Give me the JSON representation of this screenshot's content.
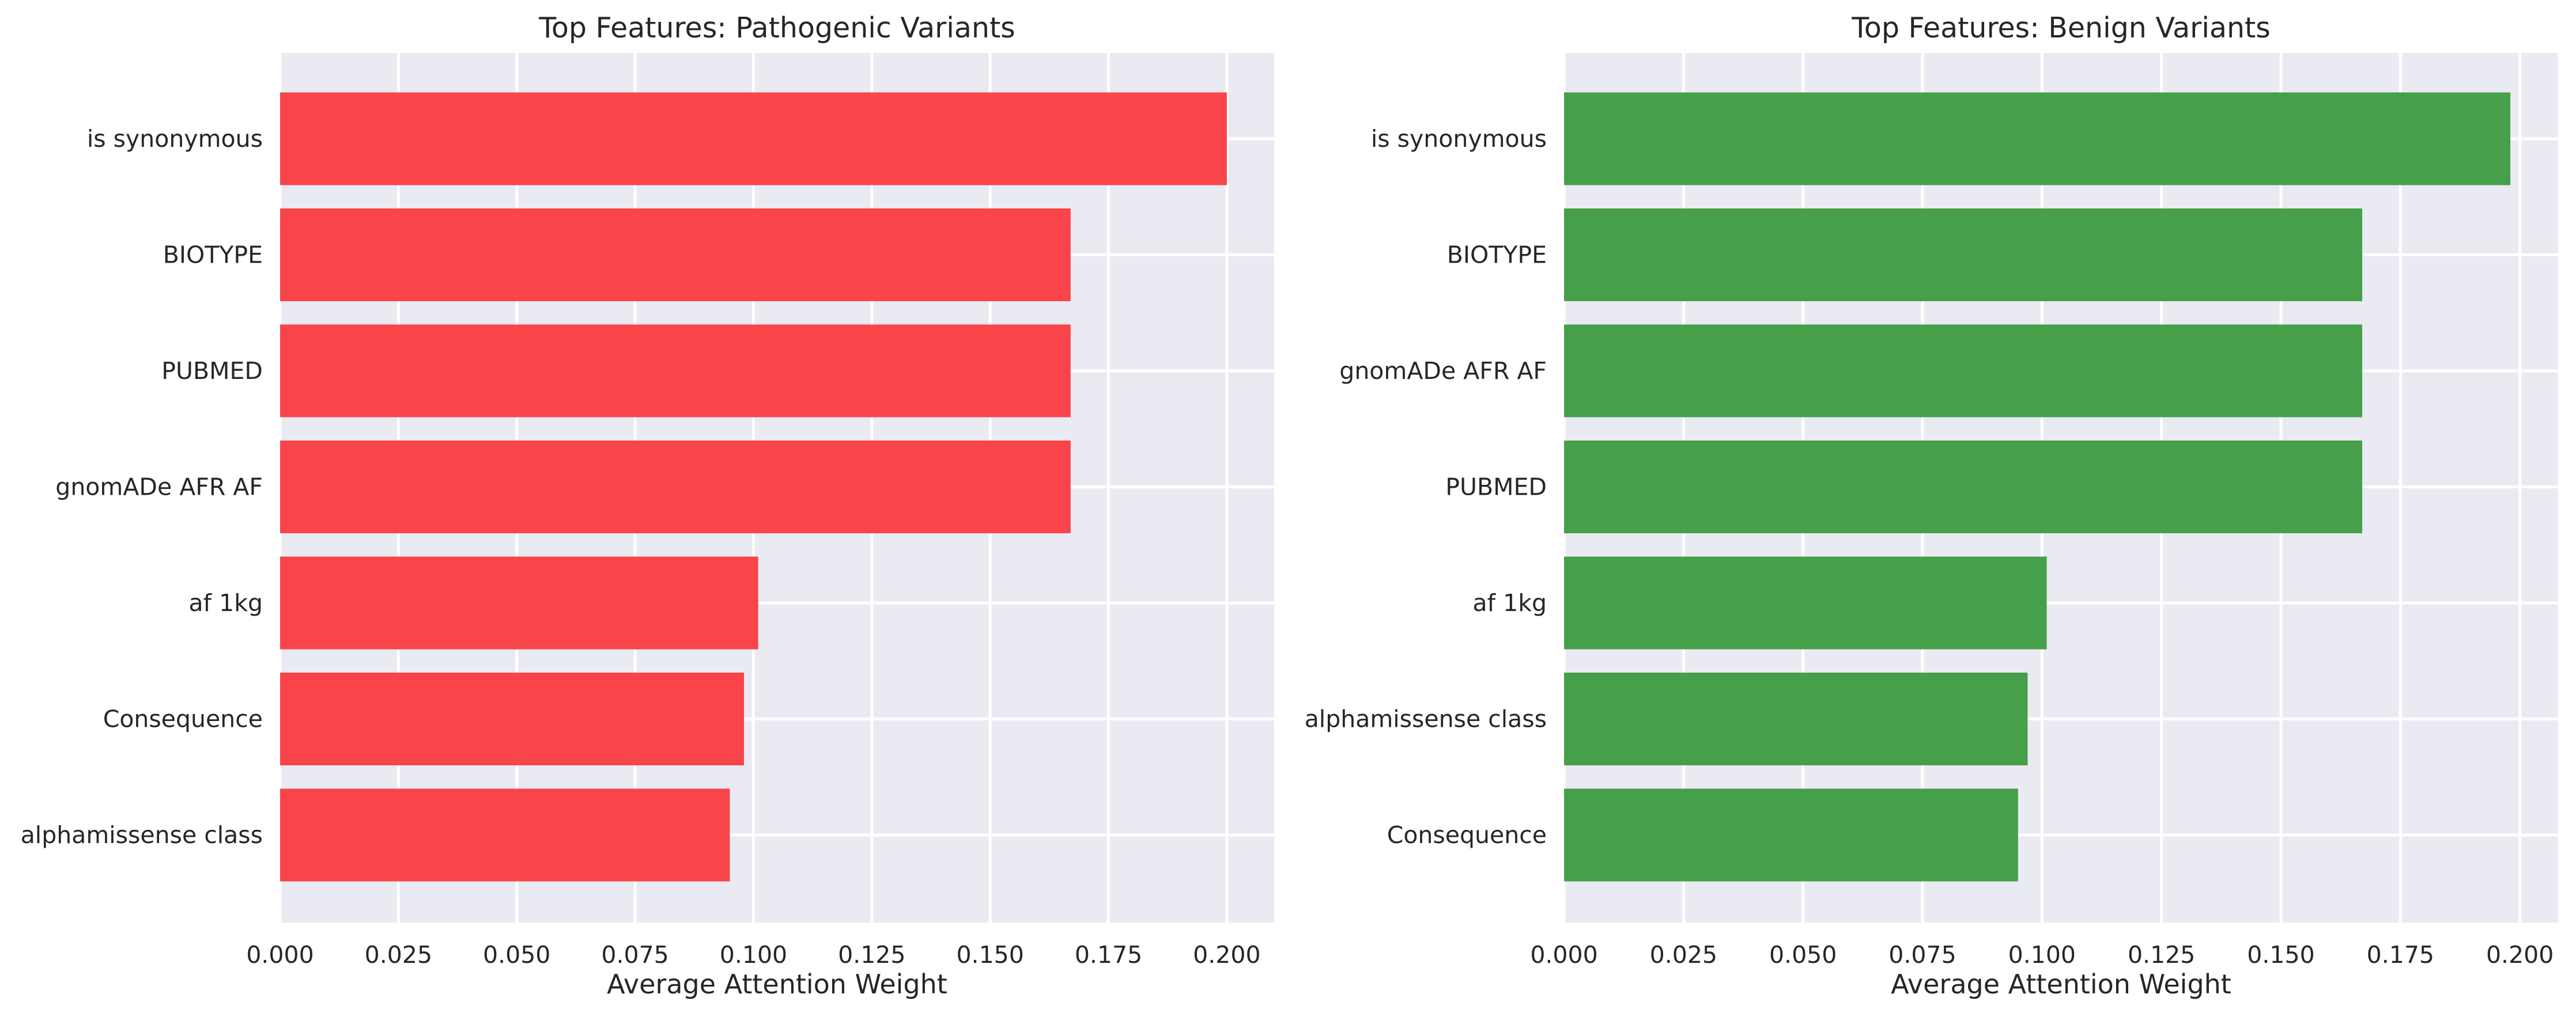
{
  "chart_data": [
    {
      "type": "bar",
      "orientation": "horizontal",
      "title": "Top Features: Pathogenic Variants",
      "xlabel": "Average Attention Weight",
      "ylabel": "",
      "xlim": [
        0,
        0.21
      ],
      "xticks": [
        0.0,
        0.025,
        0.05,
        0.075,
        0.1,
        0.125,
        0.15,
        0.175,
        0.2
      ],
      "xtick_labels": [
        "0.000",
        "0.025",
        "0.050",
        "0.075",
        "0.100",
        "0.125",
        "0.150",
        "0.175",
        "0.200"
      ],
      "grid": true,
      "color": "#f94449",
      "categories": [
        "is synonymous",
        "BIOTYPE",
        "PUBMED",
        "gnomADe AFR AF",
        "af 1kg",
        "Consequence",
        "alphamissense class"
      ],
      "values": [
        0.2,
        0.167,
        0.167,
        0.167,
        0.101,
        0.098,
        0.095
      ]
    },
    {
      "type": "bar",
      "orientation": "horizontal",
      "title": "Top Features: Benign Variants",
      "xlabel": "Average Attention Weight",
      "ylabel": "",
      "xlim": [
        0,
        0.208
      ],
      "xticks": [
        0.0,
        0.025,
        0.05,
        0.075,
        0.1,
        0.125,
        0.15,
        0.175,
        0.2
      ],
      "xtick_labels": [
        "0.000",
        "0.025",
        "0.050",
        "0.075",
        "0.100",
        "0.125",
        "0.150",
        "0.175",
        "0.200"
      ],
      "grid": true,
      "color": "#469f49",
      "categories": [
        "is synonymous",
        "BIOTYPE",
        "gnomADe AFR AF",
        "PUBMED",
        "af 1kg",
        "alphamissense class",
        "Consequence"
      ],
      "values": [
        0.198,
        0.167,
        0.167,
        0.167,
        0.101,
        0.097,
        0.095
      ]
    }
  ]
}
